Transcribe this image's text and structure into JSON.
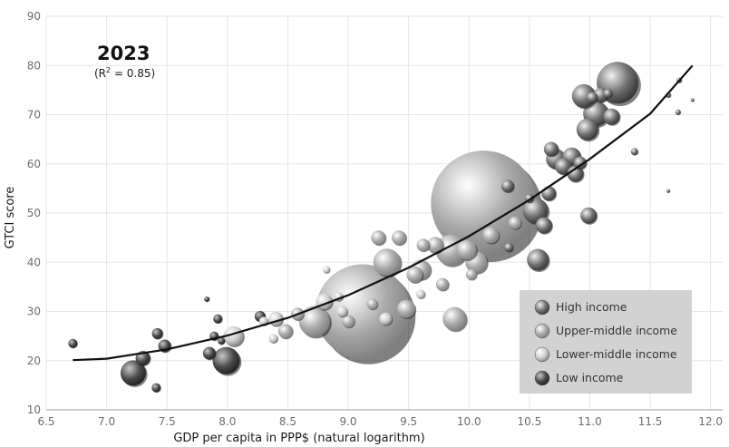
{
  "chart_data": {
    "type": "scatter",
    "title": "2023",
    "subtitle_pre": "(R",
    "subtitle_sup": "2",
    "subtitle_post": " = 0.85)",
    "xlabel": "GDP per capita in PPP$ (natural logarithm)",
    "ylabel": "GTCI score",
    "xlim": [
      6.5,
      12.1
    ],
    "ylim": [
      10,
      90
    ],
    "xticks": [
      "6.5",
      "7.0",
      "7.5",
      "8.0",
      "8.5",
      "9.0",
      "9.5",
      "10.0",
      "10.5",
      "11.0",
      "11.5",
      "12.0"
    ],
    "yticks": [
      "10",
      "20",
      "30",
      "40",
      "50",
      "60",
      "70",
      "80",
      "90"
    ],
    "grid": true,
    "legend_position": "bottom-right",
    "trendline": [
      [
        6.72,
        20.1
      ],
      [
        7.0,
        20.4
      ],
      [
        7.5,
        22.3
      ],
      [
        8.0,
        25.1
      ],
      [
        8.5,
        28.7
      ],
      [
        9.0,
        33.3
      ],
      [
        9.5,
        38.9
      ],
      [
        10.0,
        45.3
      ],
      [
        10.5,
        52.7
      ],
      [
        11.0,
        61.0
      ],
      [
        11.5,
        70.2
      ],
      [
        11.85,
        80.0
      ]
    ],
    "series": [
      {
        "name": "High income",
        "color": "#707070",
        "points": [
          {
            "x": 11.23,
            "y": 76.5,
            "r": 23
          },
          {
            "x": 10.95,
            "y": 73.8,
            "r": 13
          },
          {
            "x": 11.05,
            "y": 70.2,
            "r": 14
          },
          {
            "x": 10.98,
            "y": 67.0,
            "r": 12
          },
          {
            "x": 11.18,
            "y": 69.6,
            "r": 9
          },
          {
            "x": 11.09,
            "y": 74.0,
            "r": 8
          },
          {
            "x": 11.02,
            "y": 73.5,
            "r": 6
          },
          {
            "x": 11.15,
            "y": 74.3,
            "r": 5
          },
          {
            "x": 10.72,
            "y": 61.0,
            "r": 11
          },
          {
            "x": 10.85,
            "y": 61.5,
            "r": 10
          },
          {
            "x": 10.78,
            "y": 59.5,
            "r": 9
          },
          {
            "x": 10.88,
            "y": 58.0,
            "r": 9
          },
          {
            "x": 10.68,
            "y": 63.0,
            "r": 8
          },
          {
            "x": 10.92,
            "y": 60.2,
            "r": 7
          },
          {
            "x": 10.55,
            "y": 50.5,
            "r": 14
          },
          {
            "x": 10.62,
            "y": 47.5,
            "r": 9
          },
          {
            "x": 10.32,
            "y": 55.5,
            "r": 7
          },
          {
            "x": 10.66,
            "y": 54.0,
            "r": 8
          },
          {
            "x": 10.5,
            "y": 53.0,
            "r": 5
          },
          {
            "x": 10.99,
            "y": 49.5,
            "r": 9
          },
          {
            "x": 10.33,
            "y": 43.0,
            "r": 5
          },
          {
            "x": 11.37,
            "y": 62.5,
            "r": 4
          },
          {
            "x": 11.74,
            "y": 77.0,
            "r": 3
          },
          {
            "x": 11.65,
            "y": 74.0,
            "r": 3
          },
          {
            "x": 11.73,
            "y": 70.5,
            "r": 3
          },
          {
            "x": 11.85,
            "y": 73.0,
            "r": 2
          },
          {
            "x": 11.65,
            "y": 54.5,
            "r": 2
          },
          {
            "x": 10.57,
            "y": 40.5,
            "r": 12
          }
        ]
      },
      {
        "name": "Upper-middle income",
        "color": "#a8a8a8",
        "points": [
          {
            "x": 10.12,
            "y": 52.0,
            "r": 58
          },
          {
            "x": 9.12,
            "y": 30.0,
            "r": 52
          },
          {
            "x": 9.85,
            "y": 42.5,
            "r": 17
          },
          {
            "x": 9.6,
            "y": 38.5,
            "r": 11
          },
          {
            "x": 9.98,
            "y": 42.5,
            "r": 11
          },
          {
            "x": 10.06,
            "y": 40.0,
            "r": 12
          },
          {
            "x": 10.18,
            "y": 45.5,
            "r": 9
          },
          {
            "x": 9.72,
            "y": 43.5,
            "r": 9
          },
          {
            "x": 9.55,
            "y": 37.5,
            "r": 9
          },
          {
            "x": 9.78,
            "y": 35.5,
            "r": 7
          },
          {
            "x": 9.88,
            "y": 28.5,
            "r": 13
          },
          {
            "x": 9.32,
            "y": 40.0,
            "r": 15
          },
          {
            "x": 9.48,
            "y": 30.5,
            "r": 10
          },
          {
            "x": 8.72,
            "y": 28.0,
            "r": 17
          },
          {
            "x": 8.58,
            "y": 29.5,
            "r": 7
          },
          {
            "x": 9.25,
            "y": 45.0,
            "r": 8
          },
          {
            "x": 9.42,
            "y": 45.0,
            "r": 8
          },
          {
            "x": 9.62,
            "y": 43.5,
            "r": 7
          },
          {
            "x": 9.0,
            "y": 28.0,
            "r": 7
          },
          {
            "x": 9.2,
            "y": 31.5,
            "r": 6
          },
          {
            "x": 8.48,
            "y": 26.0,
            "r": 8
          },
          {
            "x": 10.02,
            "y": 37.5,
            "r": 6
          },
          {
            "x": 10.38,
            "y": 48.0,
            "r": 7
          }
        ]
      },
      {
        "name": "Lower-middle income",
        "color": "#cdcdcd",
        "points": [
          {
            "x": 8.05,
            "y": 25.0,
            "r": 11
          },
          {
            "x": 8.4,
            "y": 28.5,
            "r": 8
          },
          {
            "x": 8.8,
            "y": 32.0,
            "r": 9
          },
          {
            "x": 9.31,
            "y": 28.5,
            "r": 7
          },
          {
            "x": 8.38,
            "y": 24.5,
            "r": 5
          },
          {
            "x": 8.92,
            "y": 33.0,
            "r": 5
          },
          {
            "x": 8.95,
            "y": 30.0,
            "r": 6
          },
          {
            "x": 8.82,
            "y": 38.5,
            "r": 4
          },
          {
            "x": 9.6,
            "y": 33.5,
            "r": 5
          },
          {
            "x": 8.3,
            "y": 28.0,
            "r": 5
          }
        ]
      },
      {
        "name": "Low income",
        "color": "#4a4a4a",
        "points": [
          {
            "x": 7.99,
            "y": 20.0,
            "r": 15
          },
          {
            "x": 7.22,
            "y": 17.5,
            "r": 14
          },
          {
            "x": 7.3,
            "y": 20.5,
            "r": 8
          },
          {
            "x": 7.42,
            "y": 25.5,
            "r": 6
          },
          {
            "x": 7.48,
            "y": 23.0,
            "r": 7
          },
          {
            "x": 7.85,
            "y": 21.5,
            "r": 7
          },
          {
            "x": 7.92,
            "y": 28.5,
            "r": 5
          },
          {
            "x": 7.89,
            "y": 25.0,
            "r": 5
          },
          {
            "x": 7.41,
            "y": 14.5,
            "r": 5
          },
          {
            "x": 6.72,
            "y": 23.5,
            "r": 5
          },
          {
            "x": 8.27,
            "y": 29.0,
            "r": 6
          },
          {
            "x": 7.83,
            "y": 32.5,
            "r": 3
          },
          {
            "x": 7.95,
            "y": 24.0,
            "r": 4
          }
        ]
      }
    ]
  }
}
